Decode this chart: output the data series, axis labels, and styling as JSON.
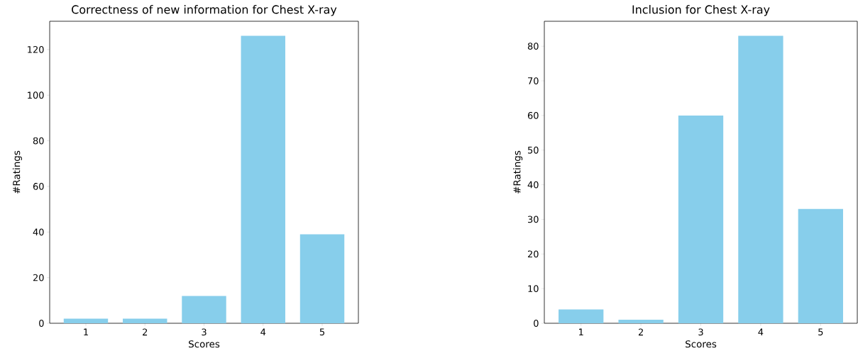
{
  "chart_data": [
    {
      "type": "bar",
      "title": "Correctness of new information for Chest X-ray",
      "xlabel": "Scores",
      "ylabel": "#Ratings",
      "categories": [
        "1",
        "2",
        "3",
        "4",
        "5"
      ],
      "values": [
        2,
        2,
        12,
        126,
        39
      ],
      "color": "#87ceeb",
      "ylim": [
        0,
        132.4
      ],
      "yticks": [
        0,
        20,
        40,
        60,
        80,
        100,
        120
      ]
    },
    {
      "type": "bar",
      "title": "Inclusion for Chest X-ray",
      "xlabel": "Scores",
      "ylabel": "#Ratings",
      "categories": [
        "1",
        "2",
        "3",
        "4",
        "5"
      ],
      "values": [
        4,
        1,
        60,
        83,
        33
      ],
      "color": "#87ceeb",
      "ylim": [
        0,
        87.2
      ],
      "yticks": [
        0,
        10,
        20,
        30,
        40,
        50,
        60,
        70,
        80
      ]
    }
  ]
}
